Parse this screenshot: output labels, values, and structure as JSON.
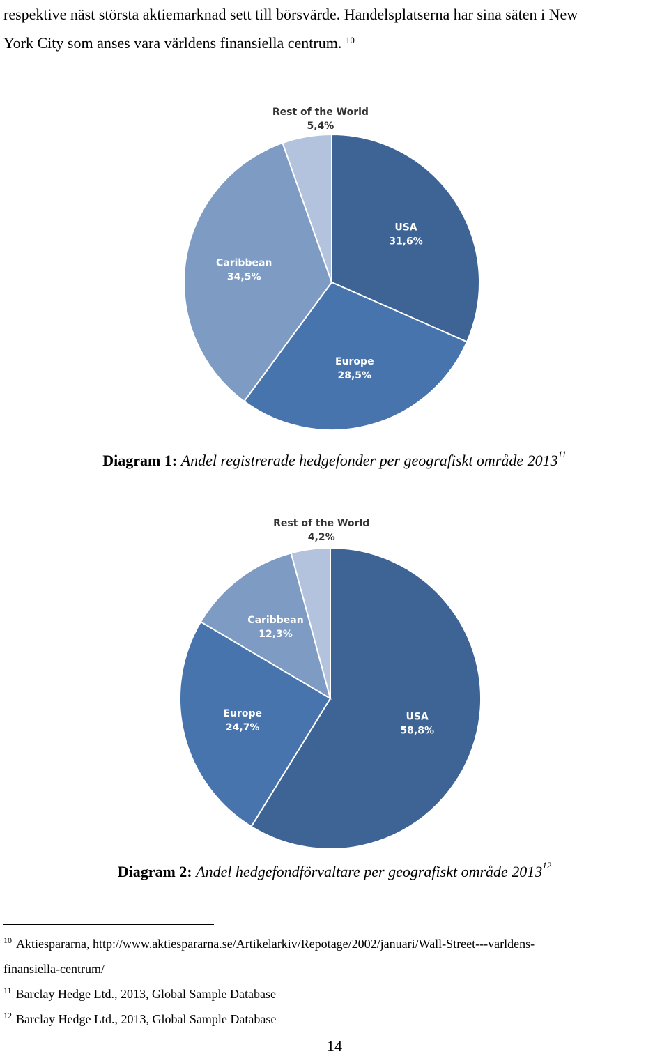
{
  "body": {
    "line1": "respektive näst största aktiemarknad sett till börsvärde. Handelsplatserna har sina säten i New",
    "line2": "York City som anses vara världens finansiella centrum.",
    "line2_ref": "10"
  },
  "chart_data": [
    {
      "type": "pie",
      "title": "",
      "slices": [
        {
          "label": "USA",
          "value": 31.6,
          "value_text": "31,6%",
          "color": "#3e6496"
        },
        {
          "label": "Europe",
          "value": 28.5,
          "value_text": "28,5%",
          "color": "#4774ad"
        },
        {
          "label": "Caribbean",
          "value": 34.5,
          "value_text": "34,5%",
          "color": "#7e9bc4"
        },
        {
          "label": "Rest of the World",
          "value": 5.4,
          "value_text": "5,4%",
          "color": "#b3c3dd"
        }
      ],
      "start_angle_deg": 0,
      "direction": "clockwise"
    },
    {
      "type": "pie",
      "title": "",
      "slices": [
        {
          "label": "USA",
          "value": 58.8,
          "value_text": "58,8%",
          "color": "#3e6496"
        },
        {
          "label": "Europe",
          "value": 24.7,
          "value_text": "24,7%",
          "color": "#4774ad"
        },
        {
          "label": "Caribbean",
          "value": 12.3,
          "value_text": "12,3%",
          "color": "#7e9bc4"
        },
        {
          "label": "Rest of the World",
          "value": 4.2,
          "value_text": "4,2%",
          "color": "#b3c3dd"
        }
      ],
      "start_angle_deg": 0,
      "direction": "clockwise"
    }
  ],
  "captions": [
    {
      "number": "Diagram 1:",
      "text": "Andel registrerade hedgefonder per geografiskt område 2013",
      "ref": "11"
    },
    {
      "number": "Diagram 2:",
      "text": "Andel hedgefondförvaltare per geografiskt område 2013",
      "ref": "12"
    }
  ],
  "footnotes": [
    {
      "ref": "10",
      "text": "Aktiespararna, http://www.aktiespararna.se/Artikelarkiv/Repotage/2002/januari/Wall-Street---varldens-",
      "text_cont": "finansiella-centrum/"
    },
    {
      "ref": "11",
      "text": "Barclay Hedge Ltd., 2013, Global Sample Database"
    },
    {
      "ref": "12",
      "text": "Barclay Hedge Ltd., 2013, Global Sample Database"
    }
  ],
  "page_number": "14"
}
